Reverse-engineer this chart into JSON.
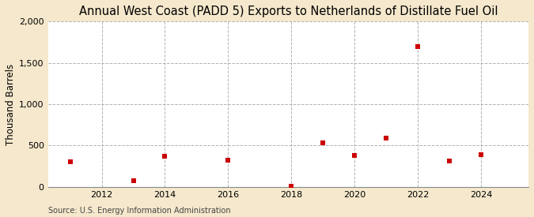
{
  "title": "Annual West Coast (PADD 5) Exports to Netherlands of Distillate Fuel Oil",
  "ylabel": "Thousand Barrels",
  "source": "Source: U.S. Energy Information Administration",
  "years": [
    2011,
    2013,
    2014,
    2016,
    2018,
    2019,
    2020,
    2021,
    2022,
    2023,
    2024
  ],
  "values": [
    300,
    70,
    370,
    320,
    5,
    530,
    380,
    590,
    1700,
    310,
    390
  ],
  "marker_color": "#cc0000",
  "marker": "s",
  "marker_size": 4,
  "xlim": [
    2010.3,
    2025.5
  ],
  "ylim": [
    0,
    2000
  ],
  "yticks": [
    0,
    500,
    1000,
    1500,
    2000
  ],
  "xticks": [
    2012,
    2014,
    2016,
    2018,
    2020,
    2022,
    2024
  ],
  "background_color": "#f5e8cc",
  "plot_bg_color": "#ffffff",
  "grid_color": "#aaaaaa",
  "title_fontsize": 10.5,
  "label_fontsize": 8.5,
  "tick_fontsize": 8,
  "source_fontsize": 7
}
